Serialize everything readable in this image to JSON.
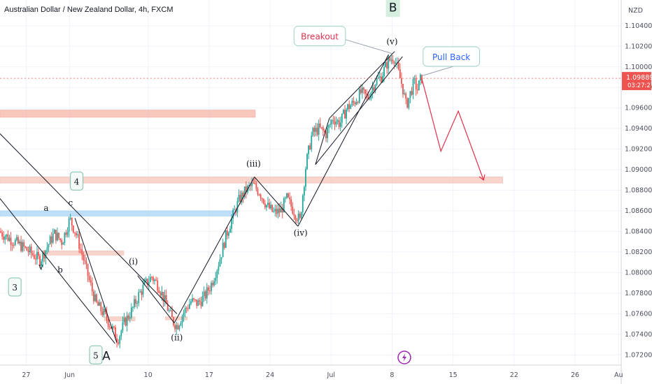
{
  "chart_data": {
    "type": "candlestick",
    "title": "Australian Dollar / New Zealand Dollar, 4h, FXCM",
    "currency": "NZD",
    "ylim": [
      1.071,
      1.1065
    ],
    "y_ticks": [
      1.072,
      1.074,
      1.076,
      1.078,
      1.08,
      1.082,
      1.084,
      1.086,
      1.088,
      1.09,
      1.092,
      1.094,
      1.096,
      1.098,
      1.1,
      1.102,
      1.104
    ],
    "y_tick_labels": [
      "1.07200",
      "1.07400",
      "1.07600",
      "1.07800",
      "1.08000",
      "1.08200",
      "1.08400",
      "1.08600",
      "1.08800",
      "1.09000",
      "1.09200",
      "1.09400",
      "1.09600",
      "1.09800",
      "1.10000",
      "1.10200",
      "1.10400"
    ],
    "x_ticks": [
      {
        "day": 27,
        "label": "27"
      },
      {
        "day": 32,
        "label": "Jun"
      },
      {
        "day": 41,
        "label": "10"
      },
      {
        "day": 48,
        "label": "17"
      },
      {
        "day": 55,
        "label": "24"
      },
      {
        "day": 62,
        "label": "Jul"
      },
      {
        "day": 69,
        "label": "8"
      },
      {
        "day": 76,
        "label": "15"
      },
      {
        "day": 83,
        "label": "22"
      },
      {
        "day": 90,
        "label": "26"
      },
      {
        "day": 95,
        "label": "Au"
      }
    ],
    "last_price": "1.09889",
    "countdown": "03:27:27",
    "price_path": [
      [
        24.0,
        1.084
      ],
      [
        25.2,
        1.0833
      ],
      [
        26.5,
        1.0826
      ],
      [
        27.8,
        1.0818
      ],
      [
        28.7,
        1.0812
      ],
      [
        29.5,
        1.0825
      ],
      [
        30.3,
        1.0838
      ],
      [
        31.2,
        1.083
      ],
      [
        32.1,
        1.0852
      ],
      [
        32.8,
        1.0838
      ],
      [
        33.6,
        1.0815
      ],
      [
        34.4,
        1.079
      ],
      [
        35.1,
        1.077
      ],
      [
        36.0,
        1.076
      ],
      [
        36.8,
        1.0748
      ],
      [
        37.6,
        1.0735
      ],
      [
        38.4,
        1.0752
      ],
      [
        39.2,
        1.0763
      ],
      [
        40.0,
        1.0778
      ],
      [
        40.7,
        1.0788
      ],
      [
        41.5,
        1.0796
      ],
      [
        42.3,
        1.0787
      ],
      [
        43.1,
        1.077
      ],
      [
        43.9,
        1.0753
      ],
      [
        44.4,
        1.0748
      ],
      [
        45.2,
        1.0762
      ],
      [
        46.0,
        1.0772
      ],
      [
        46.8,
        1.077
      ],
      [
        47.6,
        1.0777
      ],
      [
        48.4,
        1.079
      ],
      [
        49.2,
        1.081
      ],
      [
        50.0,
        1.0835
      ],
      [
        50.8,
        1.0855
      ],
      [
        51.5,
        1.087
      ],
      [
        52.3,
        1.088
      ],
      [
        53.1,
        1.0885
      ],
      [
        53.9,
        1.0878
      ],
      [
        54.7,
        1.0865
      ],
      [
        55.5,
        1.0858
      ],
      [
        56.3,
        1.086
      ],
      [
        57.0,
        1.0872
      ],
      [
        57.8,
        1.086
      ],
      [
        58.5,
        1.085
      ],
      [
        59.2,
        1.0905
      ],
      [
        59.9,
        1.0935
      ],
      [
        60.7,
        1.094
      ],
      [
        61.5,
        1.0935
      ],
      [
        62.3,
        1.095
      ],
      [
        63.1,
        1.0945
      ],
      [
        63.9,
        1.096
      ],
      [
        64.7,
        1.0965
      ],
      [
        65.5,
        1.0975
      ],
      [
        66.3,
        1.097
      ],
      [
        67.1,
        1.0985
      ],
      [
        67.8,
        1.099
      ],
      [
        68.6,
        1.1005
      ],
      [
        69.3,
        1.101
      ],
      [
        69.8,
        1.0995
      ],
      [
        70.3,
        1.098
      ],
      [
        70.7,
        1.0962
      ],
      [
        71.2,
        1.0975
      ],
      [
        71.6,
        1.0985
      ],
      [
        72.0,
        1.0978
      ],
      [
        72.4,
        1.0989
      ]
    ],
    "projection": [
      [
        72.4,
        1.0989
      ],
      [
        74.6,
        1.0918
      ],
      [
        76.6,
        1.0957
      ],
      [
        79.5,
        1.089
      ]
    ],
    "zones": [
      {
        "from_day": 24.0,
        "to_day": 53.3,
        "top": 1.0958,
        "bottom": 1.0951,
        "color": "#f6b4a8"
      },
      {
        "from_day": 24.0,
        "to_day": 81.7,
        "top": 1.0893,
        "bottom": 1.0887,
        "color": "#f6c6bc"
      },
      {
        "from_day": 24.0,
        "to_day": 51.0,
        "top": 1.086,
        "bottom": 1.0855,
        "color": "#a9d3f5"
      },
      {
        "from_day": 29.0,
        "to_day": 38.2,
        "top": 1.0821,
        "bottom": 1.0817,
        "color": "#f6c6bc"
      },
      {
        "from_day": 36.0,
        "to_day": 39.5,
        "top": 1.0757,
        "bottom": 1.0753,
        "color": "#f6c6bc"
      },
      {
        "from_day": 43.0,
        "to_day": 45.5,
        "top": 1.0757,
        "bottom": 1.0754,
        "color": "#f6c6bc"
      }
    ],
    "wave_labels": [
      {
        "text": "(i)",
        "day": 39.3,
        "price": 1.0808
      },
      {
        "text": "(ii)",
        "day": 44.3,
        "price": 1.0734
      },
      {
        "text": "(iii)",
        "day": 53.1,
        "price": 1.0903
      },
      {
        "text": "(iv)",
        "day": 58.5,
        "price": 1.0836
      },
      {
        "text": "(v)",
        "day": 69.0,
        "price": 1.1022
      },
      {
        "text": "a",
        "day": 29.3,
        "price": 1.086
      },
      {
        "text": "b",
        "day": 30.9,
        "price": 1.08
      },
      {
        "text": "c",
        "day": 32.1,
        "price": 1.0865
      },
      {
        "text": "v",
        "day": 28.7,
        "price": 1.0803
      }
    ],
    "boxed_labels": [
      {
        "text": "3",
        "day": 25.7,
        "price": 1.0786
      },
      {
        "text": "4",
        "day": 32.8,
        "price": 1.0889
      },
      {
        "text": "5",
        "day": 35.0,
        "price": 1.072
      }
    ],
    "big_labels": [
      {
        "text": "B",
        "day": 69.1,
        "price": 1.1058,
        "boxed": true
      },
      {
        "text": "A",
        "day": 36.2,
        "price": 1.0719,
        "boxed": false
      }
    ],
    "callouts": [
      {
        "text": "Breakout",
        "day": 60.7,
        "price": 1.103,
        "color": "#e0314b",
        "pointer_day": 69.0,
        "pointer_price": 1.1013
      },
      {
        "text": "Pull Back",
        "day": 75.8,
        "price": 1.101,
        "color": "#2962ff",
        "pointer_day": 72.3,
        "pointer_price": 1.0991
      }
    ],
    "lines": [
      {
        "name": "downtrend-channel-upper",
        "from": [
          24.0,
          1.0935
        ],
        "to": [
          44.3,
          1.076
        ]
      },
      {
        "name": "downtrend-channel-lower",
        "from": [
          24.0,
          1.0872
        ],
        "to": [
          37.2,
          1.0731
        ]
      },
      {
        "name": "wave-c-drop",
        "from": [
          32.6,
          1.0853
        ],
        "to": [
          37.4,
          1.0732
        ]
      },
      {
        "name": "wave-i-ii",
        "from": [
          39.8,
          1.0797
        ],
        "to": [
          44.0,
          1.0751
        ]
      },
      {
        "name": "wave-ii-iii",
        "from": [
          44.0,
          1.0751
        ],
        "to": [
          53.2,
          1.0893
        ]
      },
      {
        "name": "wave-iii-iv",
        "from": [
          53.2,
          1.0893
        ],
        "to": [
          58.2,
          1.0845
        ]
      },
      {
        "name": "wave-iv-v",
        "from": [
          58.2,
          1.0845
        ],
        "to": [
          68.6,
          1.1012
        ]
      },
      {
        "name": "wedge-upper",
        "from": [
          61.8,
          1.095
        ],
        "to": [
          69.3,
          1.1015
        ]
      },
      {
        "name": "wedge-lower",
        "from": [
          60.2,
          1.0905
        ],
        "to": [
          70.2,
          1.101
        ]
      },
      {
        "name": "wedge-left",
        "from": [
          61.8,
          1.095
        ],
        "to": [
          60.2,
          1.0905
        ]
      }
    ],
    "colors": {
      "up": "#26a69a",
      "down": "#ef5350",
      "projection": "#e0314b",
      "line": "#131722"
    },
    "icons": [
      "lightning-icon"
    ]
  }
}
